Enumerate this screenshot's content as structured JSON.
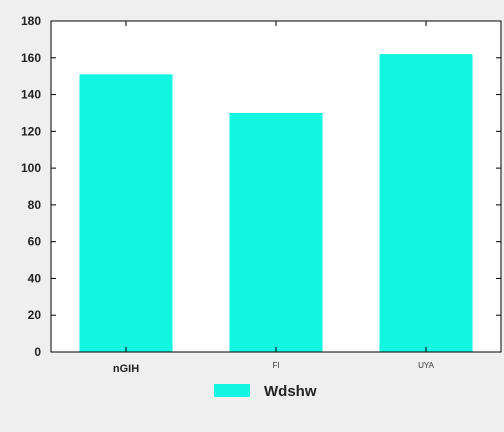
{
  "chart_data": {
    "type": "bar",
    "categories": [
      "nGIH",
      "FI",
      "UYA"
    ],
    "series": [
      {
        "name": "Wdshw",
        "values": [
          151,
          130,
          162
        ],
        "color": "#12f5e1"
      }
    ],
    "ylim": [
      0,
      180
    ],
    "yticks": [
      0,
      20,
      40,
      60,
      80,
      100,
      120,
      140,
      160,
      180
    ],
    "grid": false,
    "legend_position": "bottom-center"
  }
}
